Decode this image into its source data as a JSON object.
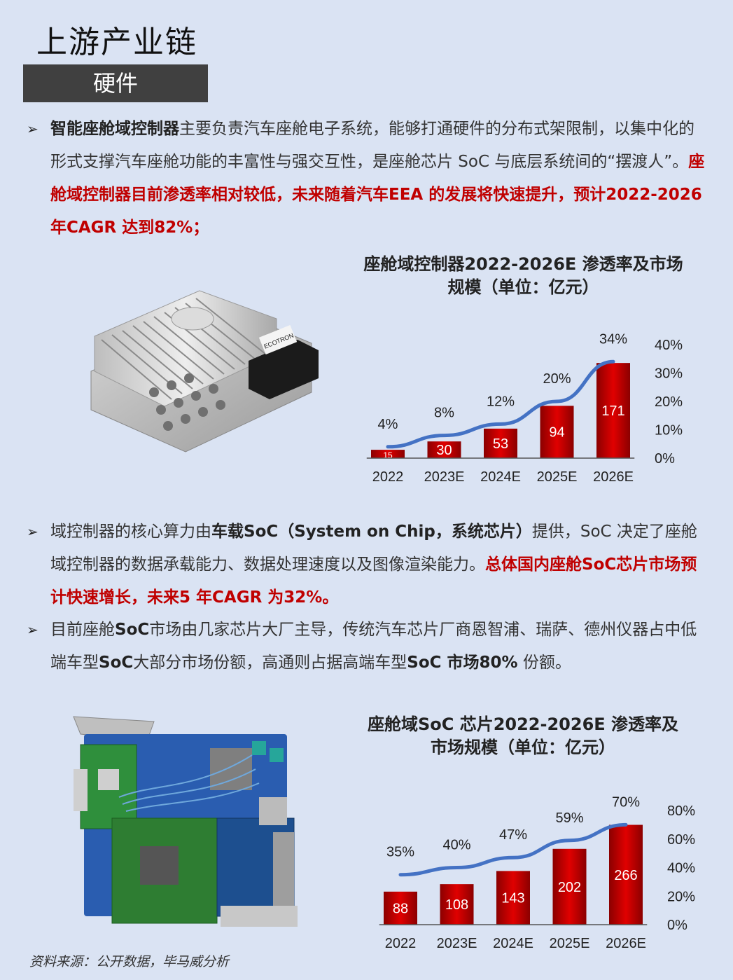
{
  "header": {
    "title": "上游产业链",
    "tag": "硬件"
  },
  "paragraph1": {
    "part1_bold": "智能座舱域控制器",
    "part2": "主要负责汽车座舱电子系统，能够打通硬件的分布式架限制，以集中化的形式支撑汽车座舱功能的丰富性与强交互性，是座舱芯片 SoC 与底层系统间的“摆渡人”。",
    "part3_red": "座舱域控制器目前渗透率相对较低，未来随着汽车EEA 的发展将快速提升，预计2022-2026 年CAGR 达到82%；"
  },
  "paragraph2": {
    "part1": "域控制器的核心算力由",
    "part2_bold": "车载SoC（System on Chip，系统芯片）",
    "part3": "提供，SoC 决定了座舱域控制器的数据承载能力、数据处理速度以及图像渲染能力。",
    "part4_red": "总体国内座舱SoC芯片市场预计快速增长，未来5 年CAGR 为32%。"
  },
  "paragraph3": {
    "part1": "目前座舱",
    "part2_bold": "SoC",
    "part3": "市场由几家芯片大厂主导，传统汽车芯片厂商恩智浦、瑞萨、德州仪器占中低端车型",
    "part4_bold": "SoC",
    "part5": "大部分市场份额，高通则占据高端车型",
    "part6_bold": "SoC 市场80%",
    "part7": " 份额。"
  },
  "source": "资料来源：公开数据，毕马威分析",
  "images": {
    "device_label": "ECOTRON"
  },
  "chart_data": [
    {
      "type": "bar",
      "title": "座舱域控制器2022-2026E 渗透率及市场规模（单位：亿元）",
      "categories": [
        "2022",
        "2023E",
        "2024E",
        "2025E",
        "2026E"
      ],
      "series": [
        {
          "values": [
            15,
            30,
            53,
            94,
            171
          ],
          "color": "#c00000"
        },
        {
          "type": "line",
          "axis": "right",
          "values": [
            4,
            8,
            12,
            20,
            34
          ],
          "labels": [
            "4%",
            "8%",
            "12%",
            "20%",
            "34%"
          ],
          "color": "#4472c4"
        }
      ],
      "y_left_max": 180,
      "y_right_ticks": [
        "40%",
        "30%",
        "20%",
        "10%",
        "0%"
      ],
      "y_right_range": [
        0,
        40
      ]
    },
    {
      "type": "bar",
      "title": "座舱域SoC 芯片2022-2026E 渗透率及市场规模（单位：亿元）",
      "categories": [
        "2022",
        "2023E",
        "2024E",
        "2025E",
        "2026E"
      ],
      "series": [
        {
          "values": [
            88,
            108,
            143,
            202,
            266
          ],
          "color": "#c00000"
        },
        {
          "type": "line",
          "axis": "right",
          "values": [
            35,
            40,
            47,
            59,
            70
          ],
          "labels": [
            "35%",
            "40%",
            "47%",
            "59%",
            "70%"
          ],
          "color": "#4472c4"
        }
      ],
      "y_left_max": 280,
      "y_right_ticks": [
        "80%",
        "60%",
        "40%",
        "20%",
        "0%"
      ],
      "y_right_range": [
        0,
        80
      ]
    }
  ]
}
